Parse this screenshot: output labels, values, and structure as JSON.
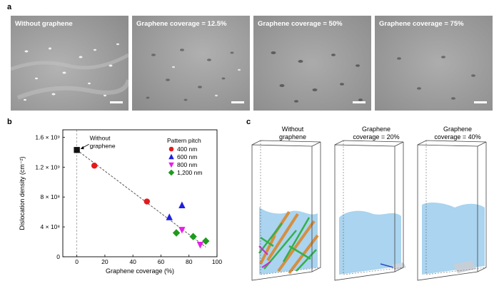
{
  "panels": {
    "a": {
      "letter": "a"
    },
    "b": {
      "letter": "b"
    },
    "c": {
      "letter": "c"
    }
  },
  "sem_images": [
    {
      "label": "Without graphene"
    },
    {
      "label": "Graphene coverage = 12.5%"
    },
    {
      "label": "Graphene coverage = 50%"
    },
    {
      "label": "Graphene coverage = 75%"
    }
  ],
  "chart_data": {
    "type": "scatter",
    "xlabel": "Graphene coverage (%)",
    "ylabel": "Dislocation density (cm⁻²)",
    "xlim": [
      -10,
      100
    ],
    "ylim": [
      0,
      1700000000.0
    ],
    "xticks": [
      0,
      20,
      40,
      60,
      80,
      100
    ],
    "yticks": [
      0,
      400000000.0,
      800000000.0,
      1200000000.0,
      1600000000.0
    ],
    "xtick_labels": [
      "0",
      "20",
      "40",
      "60",
      "80",
      "100"
    ],
    "ytick_labels": [
      "0",
      "4 × 10⁸",
      "8 × 10⁸",
      "1.2 × 10⁹",
      "1.6 × 10⁹"
    ],
    "legend_title": "Pattern pitch",
    "annotation": "Without graphene",
    "series": [
      {
        "name": "Without graphene",
        "marker": "square",
        "color": "#111111",
        "points": [
          [
            0,
            1430000000.0
          ]
        ]
      },
      {
        "name": "400 nm",
        "marker": "circle",
        "color": "#e31a1c",
        "points": [
          [
            12.5,
            1220000000.0
          ],
          [
            50,
            740000000.0
          ]
        ]
      },
      {
        "name": "600 nm",
        "marker": "triangle-up",
        "color": "#1f1fe0",
        "points": [
          [
            66,
            530000000.0
          ],
          [
            75,
            690000000.0
          ]
        ]
      },
      {
        "name": "800 nm",
        "marker": "triangle-down",
        "color": "#e61fe6",
        "points": [
          [
            75,
            360000000.0
          ],
          [
            88,
            160000000.0
          ]
        ]
      },
      {
        "name": "1,200 nm",
        "marker": "diamond",
        "color": "#1f9a1f",
        "points": [
          [
            71,
            320000000.0
          ],
          [
            83,
            270000000.0
          ],
          [
            92,
            210000000.0
          ]
        ]
      }
    ],
    "trend_line": [
      [
        0,
        1430000000.0
      ],
      [
        92,
        130000000.0
      ]
    ]
  },
  "simulations": [
    {
      "title_line1": "Without",
      "title_line2": "graphene"
    },
    {
      "title_line1": "Graphene",
      "title_line2": "coverage = 20%"
    },
    {
      "title_line1": "Graphene",
      "title_line2": "coverage = 40%"
    }
  ],
  "colors": {
    "sem_base": "#9c9c9c",
    "cloud": "#8ec5ea",
    "disl_orange": "#d9882e",
    "disl_green": "#34b04a"
  }
}
